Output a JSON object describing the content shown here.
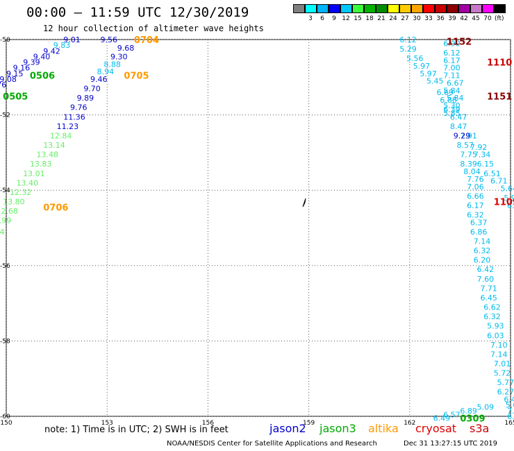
{
  "title": "00:00 – 11:59 UTC 12/30/2019",
  "subtitle": "12 hour collection of altimeter wave heights",
  "legend": {
    "colors": [
      "#808080",
      "#00ffff",
      "#00b4ff",
      "#0000ff",
      "#00c8ff",
      "#3cff3c",
      "#00b400",
      "#008c00",
      "#ffff00",
      "#ffcc00",
      "#ffa500",
      "#ff0000",
      "#c80000",
      "#8c0000",
      "#a000a0",
      "#c878c8",
      "#ff00ff",
      "#000000"
    ],
    "labels": [
      "3",
      "6",
      "9",
      "12",
      "15",
      "18",
      "21",
      "24",
      "27",
      "30",
      "33",
      "36",
      "39",
      "42",
      "45",
      "70"
    ],
    "unit": "(ft)"
  },
  "axes": {
    "lon_ticks": [
      "150",
      "153",
      "156",
      "159",
      "162",
      "165"
    ],
    "lat_ticks": [
      "-50",
      "-52",
      "-54",
      "-56",
      "-58",
      "-60"
    ]
  },
  "map_data": {
    "type": "track-map",
    "colors": {
      "jason2": "#0000cc",
      "jason3": "#00aa00",
      "altika": "#ff9900",
      "cryosat": "#dd0000",
      "s3a": "#cc0000",
      "cyan": "#00bbee",
      "green": "#66ee66",
      "maroon": "#880000"
    },
    "heights": [
      {
        "text": "9.01",
        "lon": 151.7,
        "lat": -50.0,
        "c": "jason2"
      },
      {
        "text": "9.56",
        "lon": 152.8,
        "lat": -50.0,
        "c": "jason2"
      },
      {
        "text": "9.83",
        "lon": 151.4,
        "lat": -50.15,
        "c": "cyan"
      },
      {
        "text": "9.68",
        "lon": 153.3,
        "lat": -50.22,
        "c": "jason2"
      },
      {
        "text": "9.42",
        "lon": 151.1,
        "lat": -50.3,
        "c": "jason2"
      },
      {
        "text": "9.30",
        "lon": 153.1,
        "lat": -50.45,
        "c": "jason2"
      },
      {
        "text": "9.40",
        "lon": 150.8,
        "lat": -50.45,
        "c": "jason2"
      },
      {
        "text": "9.39",
        "lon": 150.5,
        "lat": -50.6,
        "c": "jason2"
      },
      {
        "text": "8.88",
        "lon": 152.9,
        "lat": -50.65,
        "c": "cyan"
      },
      {
        "text": "9.16",
        "lon": 150.2,
        "lat": -50.75,
        "c": "jason2"
      },
      {
        "text": "8.94",
        "lon": 152.7,
        "lat": -50.85,
        "c": "cyan"
      },
      {
        "text": "9.15",
        "lon": 150.0,
        "lat": -50.9,
        "c": "jason2"
      },
      {
        "text": "9.08",
        "lon": 149.8,
        "lat": -51.05,
        "c": "jason2"
      },
      {
        "text": "9.46",
        "lon": 152.5,
        "lat": -51.05,
        "c": "jason2"
      },
      {
        "text": "9.76",
        "lon": 149.5,
        "lat": -51.2,
        "c": "jason2"
      },
      {
        "text": "9.70",
        "lon": 152.3,
        "lat": -51.3,
        "c": "jason2"
      },
      {
        "text": "9.56",
        "lon": 149.2,
        "lat": -51.35,
        "c": "jason2"
      },
      {
        "text": "9.89",
        "lon": 152.1,
        "lat": -51.55,
        "c": "jason2"
      },
      {
        "text": "9.76",
        "lon": 151.9,
        "lat": -51.8,
        "c": "jason2"
      },
      {
        "text": "11.36",
        "lon": 151.7,
        "lat": -52.05,
        "c": "jason2"
      },
      {
        "text": "11.23",
        "lon": 151.5,
        "lat": -52.3,
        "c": "jason2"
      },
      {
        "text": "12.84",
        "lon": 151.3,
        "lat": -52.55,
        "c": "green"
      },
      {
        "text": "13.14",
        "lon": 151.1,
        "lat": -52.8,
        "c": "green"
      },
      {
        "text": "13.48",
        "lon": 150.9,
        "lat": -53.05,
        "c": "green"
      },
      {
        "text": "13.83",
        "lon": 150.7,
        "lat": -53.3,
        "c": "green"
      },
      {
        "text": "13.01",
        "lon": 150.5,
        "lat": -53.55,
        "c": "green"
      },
      {
        "text": "13.40",
        "lon": 150.3,
        "lat": -53.8,
        "c": "green"
      },
      {
        "text": "12.32",
        "lon": 150.1,
        "lat": -54.05,
        "c": "green"
      },
      {
        "text": "13.80",
        "lon": 149.9,
        "lat": -54.3,
        "c": "green"
      },
      {
        "text": "12.68",
        "lon": 149.7,
        "lat": -54.55,
        "c": "green"
      },
      {
        "text": "12.99",
        "lon": 149.5,
        "lat": -54.8,
        "c": "green"
      },
      {
        "text": "12.74",
        "lon": 149.3,
        "lat": -55.1,
        "c": "green"
      },
      {
        "text": "6.12",
        "lon": 161.7,
        "lat": -50.0,
        "c": "cyan"
      },
      {
        "text": "6.90",
        "lon": 163.0,
        "lat": -50.1,
        "c": "cyan"
      },
      {
        "text": "5.29",
        "lon": 161.7,
        "lat": -50.25,
        "c": "cyan"
      },
      {
        "text": "6.12",
        "lon": 163.0,
        "lat": -50.35,
        "c": "cyan"
      },
      {
        "text": "5.56",
        "lon": 161.9,
        "lat": -50.5,
        "c": "cyan"
      },
      {
        "text": "6.17",
        "lon": 163.0,
        "lat": -50.55,
        "c": "cyan"
      },
      {
        "text": "5.97",
        "lon": 162.1,
        "lat": -50.7,
        "c": "cyan"
      },
      {
        "text": "7.00",
        "lon": 163.0,
        "lat": -50.75,
        "c": "cyan"
      },
      {
        "text": "5.97",
        "lon": 162.3,
        "lat": -50.9,
        "c": "cyan"
      },
      {
        "text": "7.11",
        "lon": 163.0,
        "lat": -50.95,
        "c": "cyan"
      },
      {
        "text": "5.45",
        "lon": 162.5,
        "lat": -51.1,
        "c": "cyan"
      },
      {
        "text": "6.67",
        "lon": 163.1,
        "lat": -51.15,
        "c": "cyan"
      },
      {
        "text": "5.84",
        "lon": 163.0,
        "lat": -51.35,
        "c": "cyan"
      },
      {
        "text": "6.69",
        "lon": 162.8,
        "lat": -51.4,
        "c": "cyan"
      },
      {
        "text": "5.84",
        "lon": 163.1,
        "lat": -51.55,
        "c": "cyan"
      },
      {
        "text": "6.88",
        "lon": 162.9,
        "lat": -51.6,
        "c": "cyan"
      },
      {
        "text": "5.30",
        "lon": 163.0,
        "lat": -51.75,
        "c": "cyan"
      },
      {
        "text": "6.39",
        "lon": 163.0,
        "lat": -51.85,
        "c": "cyan"
      },
      {
        "text": "5.85",
        "lon": 163.0,
        "lat": -51.95,
        "c": "cyan"
      },
      {
        "text": "6.47",
        "lon": 163.2,
        "lat": -52.05,
        "c": "cyan"
      },
      {
        "text": "8.47",
        "lon": 163.2,
        "lat": -52.3,
        "c": "cyan"
      },
      {
        "text": "7.91",
        "lon": 163.5,
        "lat": -52.55,
        "c": "cyan"
      },
      {
        "text": "9.29",
        "lon": 163.3,
        "lat": -52.55,
        "c": "jason2"
      },
      {
        "text": "8.57",
        "lon": 163.4,
        "lat": -52.8,
        "c": "cyan"
      },
      {
        "text": "7.92",
        "lon": 163.8,
        "lat": -52.85,
        "c": "cyan"
      },
      {
        "text": "7.75",
        "lon": 163.5,
        "lat": -53.05,
        "c": "cyan"
      },
      {
        "text": "7.34",
        "lon": 163.9,
        "lat": -53.05,
        "c": "cyan"
      },
      {
        "text": "8.39",
        "lon": 163.5,
        "lat": -53.3,
        "c": "cyan"
      },
      {
        "text": "6.15",
        "lon": 164.0,
        "lat": -53.3,
        "c": "cyan"
      },
      {
        "text": "8.04",
        "lon": 163.6,
        "lat": -53.5,
        "c": "cyan"
      },
      {
        "text": "6.51",
        "lon": 164.2,
        "lat": -53.55,
        "c": "cyan"
      },
      {
        "text": "7.76",
        "lon": 163.7,
        "lat": -53.7,
        "c": "cyan"
      },
      {
        "text": "6.71",
        "lon": 164.4,
        "lat": -53.75,
        "c": "cyan"
      },
      {
        "text": "7.06",
        "lon": 163.7,
        "lat": -53.9,
        "c": "cyan"
      },
      {
        "text": "5.64",
        "lon": 164.7,
        "lat": -53.95,
        "c": "cyan"
      },
      {
        "text": "6.66",
        "lon": 163.7,
        "lat": -54.15,
        "c": "cyan"
      },
      {
        "text": "5.96",
        "lon": 164.8,
        "lat": -54.2,
        "c": "cyan"
      },
      {
        "text": "6.17",
        "lon": 163.7,
        "lat": -54.4,
        "c": "cyan"
      },
      {
        "text": "6.40",
        "lon": 164.9,
        "lat": -54.4,
        "c": "cyan"
      },
      {
        "text": "6.32",
        "lon": 163.7,
        "lat": -54.65,
        "c": "cyan"
      },
      {
        "text": "6.85",
        "lon": 165.1,
        "lat": -54.65,
        "c": "cyan"
      },
      {
        "text": "6.37",
        "lon": 163.8,
        "lat": -54.85,
        "c": "cyan"
      },
      {
        "text": "5.3",
        "lon": 165.1,
        "lat": -54.85,
        "c": "cyan"
      },
      {
        "text": "6.86",
        "lon": 163.8,
        "lat": -55.1,
        "c": "cyan"
      },
      {
        "text": "6.",
        "lon": 165.2,
        "lat": -55.1,
        "c": "cyan"
      },
      {
        "text": "7.14",
        "lon": 163.9,
        "lat": -55.35,
        "c": "cyan"
      },
      {
        "text": "6.32",
        "lon": 163.9,
        "lat": -55.6,
        "c": "cyan"
      },
      {
        "text": "6.20",
        "lon": 163.9,
        "lat": -55.85,
        "c": "cyan"
      },
      {
        "text": "6.42",
        "lon": 164.0,
        "lat": -56.1,
        "c": "cyan"
      },
      {
        "text": "7.60",
        "lon": 164.0,
        "lat": -56.35,
        "c": "cyan"
      },
      {
        "text": "7.71",
        "lon": 164.1,
        "lat": -56.6,
        "c": "cyan"
      },
      {
        "text": "6.45",
        "lon": 164.1,
        "lat": -56.85,
        "c": "cyan"
      },
      {
        "text": "6.62",
        "lon": 164.2,
        "lat": -57.1,
        "c": "cyan"
      },
      {
        "text": "6.32",
        "lon": 164.2,
        "lat": -57.35,
        "c": "cyan"
      },
      {
        "text": "5.93",
        "lon": 164.3,
        "lat": -57.6,
        "c": "cyan"
      },
      {
        "text": "6.03",
        "lon": 164.3,
        "lat": -57.85,
        "c": "cyan"
      },
      {
        "text": "7.10",
        "lon": 164.4,
        "lat": -58.1,
        "c": "cyan"
      },
      {
        "text": "7.14",
        "lon": 164.4,
        "lat": -58.35,
        "c": "cyan"
      },
      {
        "text": "7.01",
        "lon": 164.5,
        "lat": -58.6,
        "c": "cyan"
      },
      {
        "text": "5.72",
        "lon": 164.5,
        "lat": -58.85,
        "c": "cyan"
      },
      {
        "text": "5.77",
        "lon": 164.6,
        "lat": -59.1,
        "c": "cyan"
      },
      {
        "text": "6.27",
        "lon": 164.6,
        "lat": -59.35,
        "c": "cyan"
      },
      {
        "text": "6.44",
        "lon": 164.8,
        "lat": -59.55,
        "c": "cyan"
      },
      {
        "text": "5.63",
        "lon": 164.85,
        "lat": -59.7,
        "c": "cyan"
      },
      {
        "text": "5.09",
        "lon": 164.0,
        "lat": -59.75,
        "c": "cyan"
      },
      {
        "text": "7.0",
        "lon": 164.9,
        "lat": -59.85,
        "c": "cyan"
      },
      {
        "text": "6.89",
        "lon": 163.5,
        "lat": -59.85,
        "c": "cyan"
      },
      {
        "text": "6.57",
        "lon": 163.0,
        "lat": -59.95,
        "c": "cyan"
      },
      {
        "text": "6.49",
        "lon": 162.7,
        "lat": -60.05,
        "c": "cyan"
      },
      {
        "text": "6.9",
        "lon": 164.9,
        "lat": -60.0,
        "c": "cyan"
      }
    ],
    "times": [
      {
        "text": "0704",
        "lon": 153.8,
        "lat": -50.0,
        "c": "altika"
      },
      {
        "text": "0506",
        "lon": 150.7,
        "lat": -50.95,
        "c": "jason3"
      },
      {
        "text": "0705",
        "lon": 153.5,
        "lat": -50.95,
        "c": "altika"
      },
      {
        "text": "0505",
        "lon": 149.9,
        "lat": -51.5,
        "c": "jason3"
      },
      {
        "text": "0706",
        "lon": 151.1,
        "lat": -54.45,
        "c": "altika"
      },
      {
        "text": "1152",
        "lon": 163.1,
        "lat": -50.05,
        "c": "maroon"
      },
      {
        "text": "1110",
        "lon": 164.3,
        "lat": -50.6,
        "c": "s3a"
      },
      {
        "text": "1151",
        "lon": 164.3,
        "lat": -51.5,
        "c": "maroon"
      },
      {
        "text": "1109",
        "lon": 164.5,
        "lat": -54.3,
        "c": "cryosat"
      },
      {
        "text": "0309",
        "lon": 163.5,
        "lat": -60.05,
        "c": "jason3"
      }
    ]
  },
  "note": "note: 1) Time is in UTC; 2) SWH is in feet",
  "satellites": [
    {
      "name": "jason2",
      "color": "#0000cc"
    },
    {
      "name": "jason3",
      "color": "#00aa00"
    },
    {
      "name": "altika",
      "color": "#ff9900"
    },
    {
      "name": "cryosat",
      "color": "#dd0000"
    },
    {
      "name": "s3a",
      "color": "#cc0000"
    }
  ],
  "footer": "NOAA/NESDIS Center for Satellite Applications and Research",
  "footer_date": "Dec 31 13:27:15 UTC 2019"
}
